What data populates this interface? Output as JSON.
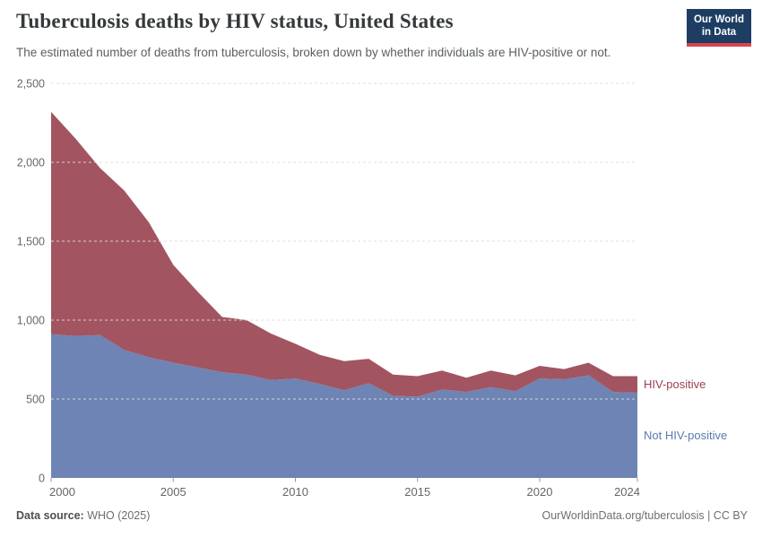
{
  "logo": {
    "line1": "Our World",
    "line2": "in Data",
    "bg_color": "#1d3d63",
    "accent_color": "#d8444e"
  },
  "chart_data": {
    "type": "area",
    "stacked": true,
    "title": "Tuberculosis deaths by HIV status, United States",
    "subtitle": "The estimated number of deaths from tuberculosis, broken down by whether individuals are HIV-positive or not.",
    "xlabel": "",
    "ylabel": "",
    "x": [
      2000,
      2001,
      2002,
      2003,
      2004,
      2005,
      2006,
      2007,
      2008,
      2009,
      2010,
      2011,
      2012,
      2013,
      2014,
      2015,
      2016,
      2017,
      2018,
      2019,
      2020,
      2021,
      2022,
      2023,
      2024
    ],
    "series": [
      {
        "name": "Not HIV-positive",
        "color": "#6d84b4",
        "label_color": "#5b79ae",
        "values": [
          910,
          900,
          905,
          810,
          765,
          730,
          700,
          670,
          655,
          620,
          630,
          595,
          555,
          600,
          520,
          515,
          560,
          545,
          575,
          550,
          630,
          625,
          650,
          545,
          540
        ]
      },
      {
        "name": "HIV-positive",
        "color": "#a25560",
        "label_color": "#9d3e50",
        "values": [
          1410,
          1250,
          1060,
          1010,
          855,
          620,
          480,
          350,
          345,
          295,
          220,
          185,
          185,
          155,
          135,
          130,
          120,
          90,
          105,
          100,
          80,
          65,
          80,
          100,
          105
        ]
      }
    ],
    "xlim": [
      2000,
      2024
    ],
    "ylim": [
      0,
      2500
    ],
    "x_ticks": [
      2000,
      2005,
      2010,
      2015,
      2020,
      2024
    ],
    "y_ticks": [
      0,
      500,
      1000,
      1500,
      2000,
      2500
    ],
    "grid": true,
    "gridline_color": "#dcdcdc",
    "axis_text_color": "#666666",
    "legend_position": "inline-end-labels"
  },
  "footer": {
    "source_label": "Data source:",
    "source_value": " WHO (2025)",
    "credit": "OurWorldinData.org/tuberculosis | CC BY"
  }
}
